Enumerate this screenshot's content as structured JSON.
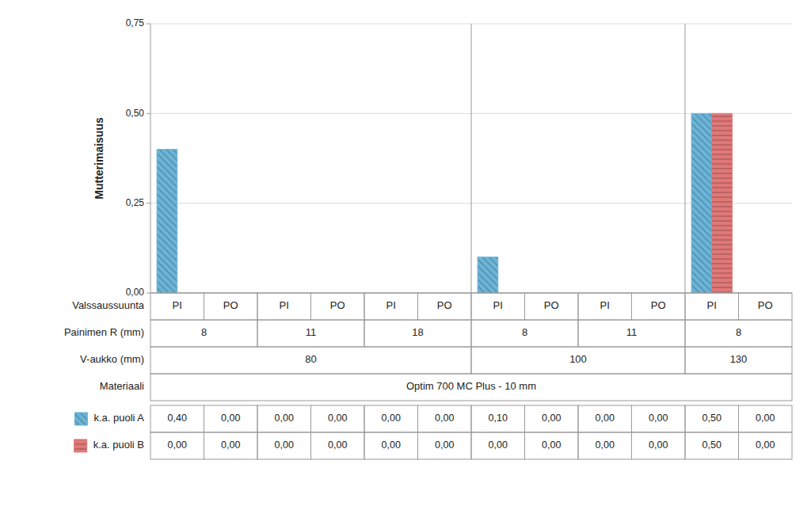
{
  "chart_data": {
    "type": "bar",
    "ylabel": "Mutterimaisuus",
    "category_name": "Valssaussuunta",
    "categories": [
      "PI",
      "PO",
      "PI",
      "PO",
      "PI",
      "PO",
      "PI",
      "PO",
      "PI",
      "PO",
      "PI",
      "PO"
    ],
    "category_groups": [
      {
        "name": "Painimen R (mm)",
        "labels": [
          "8",
          "8",
          "11",
          "11",
          "18",
          "18",
          "8",
          "8",
          "11",
          "11",
          "8",
          "8"
        ]
      },
      {
        "name": "V-aukko (mm)",
        "labels": [
          "80",
          "80",
          "80",
          "80",
          "80",
          "80",
          "100",
          "100",
          "100",
          "100",
          "130",
          "130"
        ]
      },
      {
        "name": "Materiaali",
        "labels": [
          "Optim 700 MC Plus - 10 mm",
          "Optim 700 MC Plus - 10 mm",
          "Optim 700 MC Plus - 10 mm",
          "Optim 700 MC Plus - 10 mm",
          "Optim 700 MC Plus - 10 mm",
          "Optim 700 MC Plus - 10 mm",
          "Optim 700 MC Plus - 10 mm",
          "Optim 700 MC Plus - 10 mm",
          "Optim 700 MC Plus - 10 mm",
          "Optim 700 MC Plus - 10 mm",
          "Optim 700 MC Plus - 10 mm",
          "Optim 700 MC Plus - 10 mm"
        ]
      }
    ],
    "series": [
      {
        "name": "k.a. puoli A",
        "color": "#6bb5d8",
        "values": [
          0.4,
          0.0,
          0.0,
          0.0,
          0.0,
          0.0,
          0.1,
          0.0,
          0.0,
          0.0,
          0.5,
          0.0
        ],
        "value_labels": [
          "0,40",
          "0,00",
          "0,00",
          "0,00",
          "0,00",
          "0,00",
          "0,10",
          "0,00",
          "0,00",
          "0,00",
          "0,50",
          "0,00"
        ]
      },
      {
        "name": "k.a. puoli B",
        "color": "#e07878",
        "values": [
          0.0,
          0.0,
          0.0,
          0.0,
          0.0,
          0.0,
          0.0,
          0.0,
          0.0,
          0.0,
          0.5,
          0.0
        ],
        "value_labels": [
          "0,00",
          "0,00",
          "0,00",
          "0,00",
          "0,00",
          "0,00",
          "0,00",
          "0,00",
          "0,00",
          "0,00",
          "0,50",
          "0,00"
        ]
      }
    ],
    "ylim": [
      0,
      0.75
    ],
    "yticks": [
      {
        "value": 0.0,
        "label": "0,00"
      },
      {
        "value": 0.25,
        "label": "0,25"
      },
      {
        "value": 0.5,
        "label": "0,50"
      },
      {
        "value": 0.75,
        "label": "0,75"
      }
    ],
    "grid": true
  }
}
